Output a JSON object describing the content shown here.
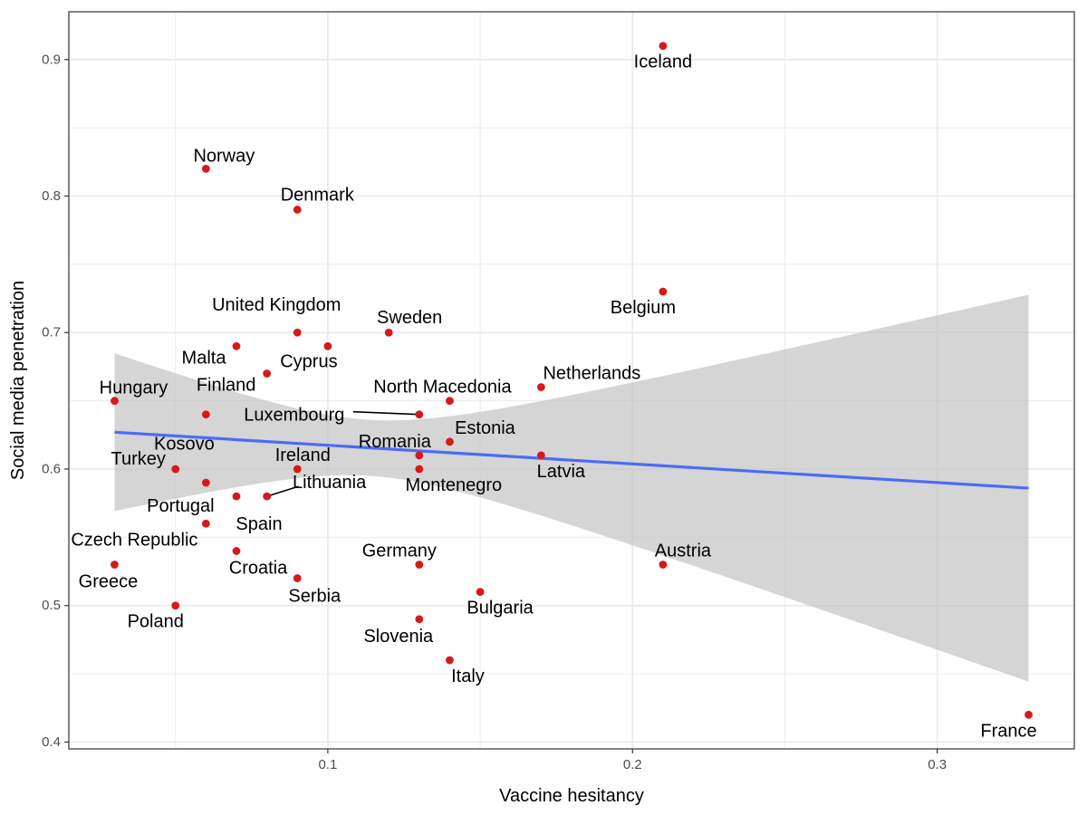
{
  "chart_data": {
    "type": "scatter",
    "title": "",
    "xlabel": "Vaccine hesitancy",
    "ylabel": "Social media penetration",
    "xlim": [
      0.015,
      0.345
    ],
    "ylim": [
      0.395,
      0.935
    ],
    "x_ticks": [
      0.1,
      0.2,
      0.3
    ],
    "x_tick_labels": [
      "0.1",
      "0.2",
      "0.3"
    ],
    "x_minor_ticks": [
      0.05,
      0.15,
      0.25
    ],
    "y_ticks": [
      0.4,
      0.5,
      0.6,
      0.7,
      0.8,
      0.9
    ],
    "y_tick_labels": [
      "0.4",
      "0.5",
      "0.6",
      "0.7",
      "0.8",
      "0.9"
    ],
    "y_minor_ticks": [
      0.45,
      0.55,
      0.65,
      0.75,
      0.85
    ],
    "grid": true,
    "legend": "none",
    "colors": {
      "point": "#d7191c",
      "trend_line": "#4a6cf7",
      "ribbon": "#bfbfbf",
      "grid": "#ebebeb",
      "panel_border": "#333333"
    },
    "points": [
      {
        "label": "Iceland",
        "x": 0.21,
        "y": 0.91
      },
      {
        "label": "Norway",
        "x": 0.06,
        "y": 0.82
      },
      {
        "label": "Denmark",
        "x": 0.09,
        "y": 0.79
      },
      {
        "label": "Belgium",
        "x": 0.21,
        "y": 0.73
      },
      {
        "label": "United Kingdom",
        "x": 0.09,
        "y": 0.7
      },
      {
        "label": "Sweden",
        "x": 0.12,
        "y": 0.7
      },
      {
        "label": "Cyprus",
        "x": 0.1,
        "y": 0.69
      },
      {
        "label": "Malta",
        "x": 0.07,
        "y": 0.69
      },
      {
        "label": "Finland",
        "x": 0.08,
        "y": 0.67
      },
      {
        "label": "Netherlands",
        "x": 0.17,
        "y": 0.66
      },
      {
        "label": "Hungary",
        "x": 0.03,
        "y": 0.65
      },
      {
        "label": "North Macedonia",
        "x": 0.14,
        "y": 0.65
      },
      {
        "label": "Kosovo",
        "x": 0.06,
        "y": 0.64
      },
      {
        "label": "Luxembourg",
        "x": 0.13,
        "y": 0.64
      },
      {
        "label": "Estonia",
        "x": 0.14,
        "y": 0.62
      },
      {
        "label": "Romania",
        "x": 0.13,
        "y": 0.61
      },
      {
        "label": "Latvia",
        "x": 0.17,
        "y": 0.61
      },
      {
        "label": "Turkey",
        "x": 0.05,
        "y": 0.6
      },
      {
        "label": "Ireland",
        "x": 0.09,
        "y": 0.6
      },
      {
        "label": "Montenegro",
        "x": 0.13,
        "y": 0.6
      },
      {
        "label": "Portugal",
        "x": 0.06,
        "y": 0.59
      },
      {
        "label": "Spain",
        "x": 0.07,
        "y": 0.58
      },
      {
        "label": "Lithuania",
        "x": 0.08,
        "y": 0.58
      },
      {
        "label": "Czech Republic",
        "x": 0.06,
        "y": 0.56
      },
      {
        "label": "Croatia",
        "x": 0.07,
        "y": 0.54
      },
      {
        "label": "Greece",
        "x": 0.03,
        "y": 0.53
      },
      {
        "label": "Germany",
        "x": 0.13,
        "y": 0.53
      },
      {
        "label": "Austria",
        "x": 0.21,
        "y": 0.53
      },
      {
        "label": "Serbia",
        "x": 0.09,
        "y": 0.52
      },
      {
        "label": "Bulgaria",
        "x": 0.15,
        "y": 0.51
      },
      {
        "label": "Poland",
        "x": 0.05,
        "y": 0.5
      },
      {
        "label": "Slovenia",
        "x": 0.13,
        "y": 0.49
      },
      {
        "label": "Italy",
        "x": 0.14,
        "y": 0.46
      },
      {
        "label": "France",
        "x": 0.33,
        "y": 0.42
      }
    ],
    "trend": {
      "x": [
        0.03,
        0.33
      ],
      "y": [
        0.627,
        0.586
      ],
      "ci_lower": [
        0.565,
        0.453
      ],
      "ci_upper": [
        0.688,
        0.719
      ]
    }
  }
}
